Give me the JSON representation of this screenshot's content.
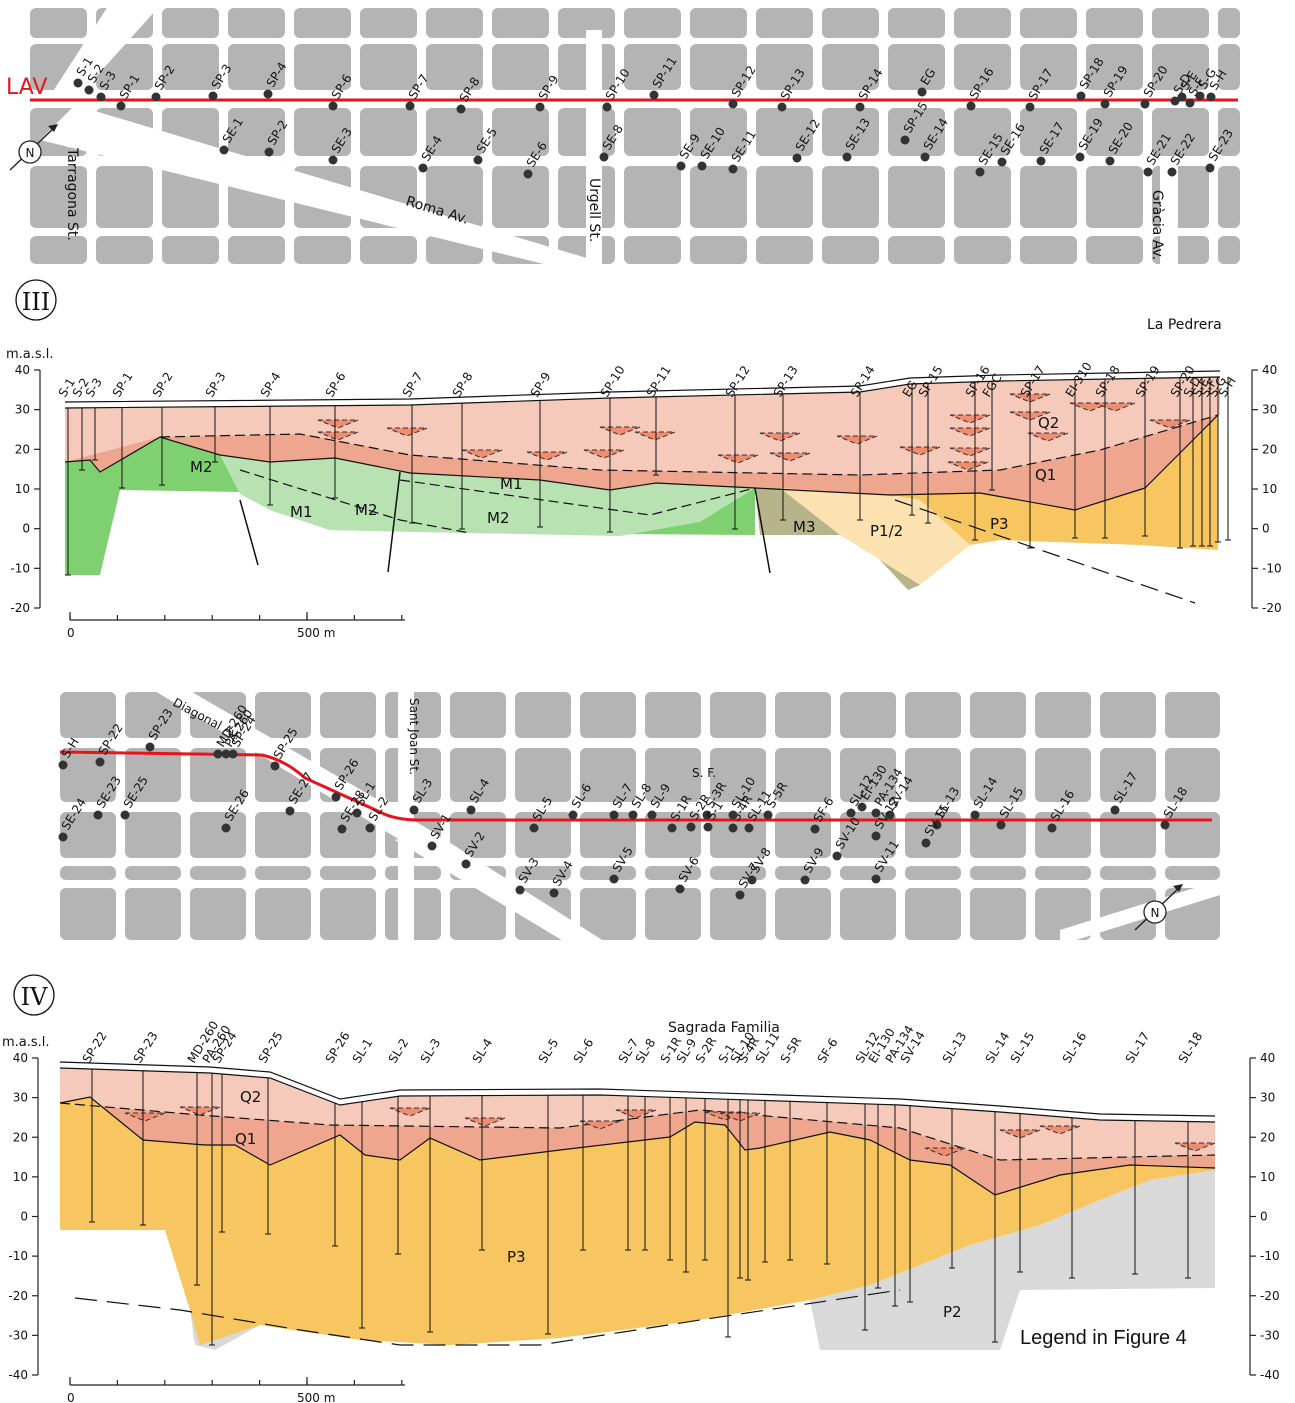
{
  "map_1": {
    "line_label": "LAV",
    "north": "N",
    "streets": [
      "Tarragona St.",
      "Roma Av.",
      "Urgell St.",
      "Gràcia Av."
    ],
    "boreholes": [
      "S-1",
      "S-2",
      "S-3",
      "SP-1",
      "SP-2",
      "SP-3",
      "SP-4",
      "SP-6",
      "SP-7",
      "SP-8",
      "SP-9",
      "SP-10",
      "SP-11",
      "SP-12",
      "SP-13",
      "SP-14",
      "EG",
      "SP-15",
      "SP-16",
      "SP-17",
      "SP-18",
      "SP-19",
      "SP-20",
      "S-D",
      "S-E",
      "S-F",
      "S-G",
      "S-H",
      "SE-1",
      "SP-2",
      "SE-3",
      "SE-4",
      "SE-5",
      "SE-6",
      "SE-8",
      "SE-9",
      "SE-10",
      "SE-11",
      "SE-12",
      "SE-13",
      "SE-14",
      "SE-15",
      "SE-16",
      "SE-17",
      "SE-19",
      "SE-20",
      "SE-21",
      "SE-22",
      "SE-23"
    ]
  },
  "section_iii": {
    "panel_label": "III",
    "y_axis_label": "m.a.s.l.",
    "site_label": "La Pedrera",
    "ylim": [
      -20,
      40
    ],
    "yticks": [
      -20,
      -10,
      0,
      10,
      20,
      30,
      40
    ],
    "xticks": [
      0,
      {
        "value": 500,
        "label": "500 m"
      }
    ],
    "boreholes": [
      "S-1",
      "S-2",
      "S-3",
      "SP-1",
      "SP-2",
      "SP-3",
      "SP-4",
      "SP-6",
      "SP-7",
      "SP-8",
      "SP-9",
      "SP-10",
      "SP-11",
      "SP-12",
      "SP-13",
      "SP-14",
      "EG",
      "SP-15",
      "SP-16",
      "FGC",
      "SP-17",
      "EI-310",
      "SP-18",
      "SP-19",
      "SP-20",
      "S-D",
      "S-E",
      "S-F",
      "S-G",
      "S-H"
    ],
    "units": [
      "M2",
      "M1",
      "M2",
      "M1",
      "M2",
      "M3",
      "P1/2",
      "P3",
      "Q2",
      "Q1"
    ]
  },
  "map_2": {
    "north": "N",
    "streets": [
      "Diagonal Av.",
      "Sant Joan St."
    ],
    "site_label": "S. F.",
    "boreholes": [
      "S-H",
      "SP-22",
      "SP-23",
      "SE-23",
      "SE-24",
      "SE-25",
      "MD-260",
      "PA-260",
      "SP-24",
      "SP-25",
      "SE-26",
      "SE-27",
      "SP-26",
      "SE-28",
      "SL-1",
      "SL-2",
      "SL-3",
      "SL-4",
      "SV-1",
      "SV-2",
      "SL-5",
      "SV-3",
      "SV-4",
      "SL-6",
      "SV-5",
      "SL-7",
      "SL-8",
      "SL-9",
      "S-1R",
      "S-2R",
      "S-3R",
      "S-1",
      "S-4R",
      "SL-10",
      "SL-11",
      "S-5R",
      "SV-6",
      "SV-7",
      "SV-8",
      "SF-6",
      "SV-9",
      "SL-12",
      "EI-130",
      "PA-134",
      "SV-10",
      "SV-11",
      "SV-14",
      "SV-12",
      "SL-13",
      "SV-15",
      "SL-14",
      "SL-15",
      "SL-16",
      "SL-17",
      "SL-18"
    ]
  },
  "section_iv": {
    "panel_label": "IV",
    "y_axis_label": "m.a.s.l.",
    "site_label": "Sagrada Familia",
    "note": "Legend in Figure 4",
    "ylim": [
      -40,
      40
    ],
    "yticks": [
      -40,
      -30,
      -20,
      -10,
      0,
      10,
      20,
      30,
      40
    ],
    "xticks": [
      0,
      {
        "value": 500,
        "label": "500 m"
      }
    ],
    "boreholes": [
      "SP-22",
      "SP-23",
      "MD-260",
      "PA-260",
      "SP-24",
      "SP-25",
      "SP-26",
      "SL-1",
      "SL-2",
      "SL-3",
      "SL-4",
      "SL-5",
      "SL-6",
      "SL-7",
      "SL-8",
      "S-1R",
      "SL-9",
      "S-2R",
      "S-1",
      "SL-10",
      "S-4R",
      "SL-11",
      "S-5R",
      "SF-6",
      "SL-12",
      "EI-130",
      "PA-134",
      "SV-14",
      "SL-13",
      "SL-14",
      "SL-15",
      "SL-16",
      "SL-17",
      "SL-18"
    ],
    "units": [
      "Q2",
      "Q1",
      "P3",
      "P2"
    ]
  }
}
